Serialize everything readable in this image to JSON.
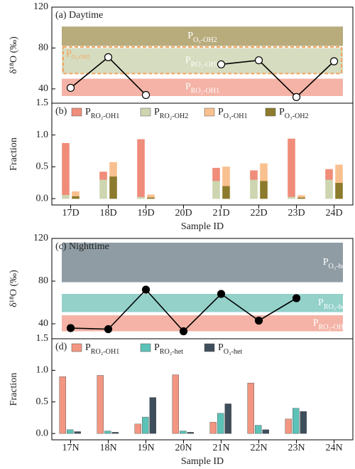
{
  "chart_data": [
    {
      "type": "line",
      "title": "(a) Daytime",
      "y_label": "δ¹⁸O (‰)",
      "ylim": [
        26,
        120
      ],
      "yticks": [
        40,
        80,
        120
      ],
      "values": [
        41,
        71,
        34,
        null,
        64,
        68,
        32,
        67
      ],
      "color": "#000000",
      "marker_fill": "#ffffff",
      "bands": [
        {
          "label": "P",
          "label_sub": "O₃-OH2",
          "range": [
            82,
            101
          ],
          "color": "#b8ab7c",
          "style": "fill",
          "label_pos": "center",
          "label_color": "#ffffff"
        },
        {
          "label": "P",
          "label_sub": "RO₂-OH2",
          "range": [
            55,
            80
          ],
          "color": "#d6dcbf",
          "style": "fill",
          "label_pos": "center",
          "label_color": "#ffffff"
        },
        {
          "label": "P",
          "label_sub": "O₃-OH1",
          "range": [
            55,
            81
          ],
          "color": "#f4a460",
          "style": "dashed",
          "label_pos": "left",
          "label_color": "#f4a460"
        },
        {
          "label": "P",
          "label_sub": "RO₂-OH1",
          "range": [
            33,
            50
          ],
          "color": "#f4b3a6",
          "style": "fill",
          "label_pos": "center",
          "label_color": "#ffffff"
        }
      ]
    },
    {
      "type": "bar",
      "stacked": true,
      "y_label": "Fraction",
      "x_label": "Sample ID",
      "title": "(b)",
      "ylim": [
        -0.1,
        1.5
      ],
      "yticks": [
        {
          "value": 0,
          "label": "0.0"
        },
        {
          "value": 0.5,
          "label": "0.5"
        },
        {
          "value": 1,
          "label": "1.0"
        },
        1.5
      ],
      "categories": [
        "17D",
        "18D",
        "19D",
        "20D",
        "21D",
        "22D",
        "23D",
        "24D"
      ],
      "series": [
        {
          "name": "P",
          "name_sub": "RO₂-OH1",
          "color": "#f08c7a",
          "stack": 0,
          "values": [
            0.81,
            0.12,
            0.9,
            null,
            0.2,
            0.14,
            0.91,
            0.16
          ]
        },
        {
          "name": "P",
          "name_sub": "RO₂-OH2",
          "color": "#cdd5b1",
          "stack": 0,
          "values": [
            0.06,
            0.3,
            0.03,
            null,
            0.28,
            0.3,
            0.03,
            0.3
          ]
        },
        {
          "name": "P",
          "name_sub": "O₃-OH1",
          "color": "#f9c08f",
          "stack": 1,
          "values": [
            0.07,
            0.22,
            0.04,
            null,
            0.3,
            0.27,
            0.03,
            0.28
          ]
        },
        {
          "name": "P",
          "name_sub": "O₃-OH2",
          "color": "#8c7b2c",
          "stack": 1,
          "values": [
            0.04,
            0.35,
            0.02,
            null,
            0.2,
            0.28,
            0.02,
            0.25
          ]
        }
      ]
    },
    {
      "type": "line",
      "title": "(c) Nighttime",
      "y_label": "δ¹⁸O (‰)",
      "ylim": [
        26,
        120
      ],
      "yticks": [
        40,
        80,
        120
      ],
      "values": [
        36,
        35,
        72,
        33,
        68,
        43,
        64,
        null
      ],
      "color": "#000000",
      "marker_fill": "#000000",
      "bands": [
        {
          "label": "P",
          "label_sub": "O₃-het",
          "range": [
            79,
            116
          ],
          "color": "#8f9ca4",
          "style": "fill",
          "label_pos": "right",
          "label_color": "#ffffff"
        },
        {
          "label": "P",
          "label_sub": "RO₂-het",
          "range": [
            51,
            68
          ],
          "color": "#93d1c9",
          "style": "fill",
          "label_pos": "right",
          "label_color": "#ffffff"
        },
        {
          "label": "P",
          "label_sub": "RO₂-OH1",
          "range": [
            33,
            48
          ],
          "color": "#f4b3a6",
          "style": "fill",
          "label_pos": "right",
          "label_color": "#ffffff"
        }
      ]
    },
    {
      "type": "bar",
      "stacked": false,
      "y_label": "Fraction",
      "x_label": "Sample ID",
      "title": "(d)",
      "ylim": [
        -0.1,
        1.5
      ],
      "yticks": [
        {
          "value": 0,
          "label": "0.0"
        },
        {
          "value": 0.5,
          "label": "0.5"
        },
        {
          "value": 1,
          "label": "1.0"
        },
        1.5
      ],
      "categories": [
        "17N",
        "18N",
        "19N",
        "20N",
        "21N",
        "22N",
        "23N",
        "24N"
      ],
      "series": [
        {
          "name": "P",
          "name_sub": "RO₂-OH1",
          "color": "#f29682",
          "values": [
            0.9,
            0.92,
            0.15,
            0.93,
            0.18,
            0.8,
            0.23,
            null
          ]
        },
        {
          "name": "P",
          "name_sub": "RO₂-het",
          "color": "#5bc2b7",
          "values": [
            0.06,
            0.04,
            0.26,
            0.04,
            0.32,
            0.13,
            0.4,
            null
          ]
        },
        {
          "name": "P",
          "name_sub": "O₃-het",
          "color": "#3f4e5b",
          "values": [
            0.03,
            0.02,
            0.57,
            0.02,
            0.47,
            0.06,
            0.35,
            null
          ]
        }
      ]
    }
  ]
}
